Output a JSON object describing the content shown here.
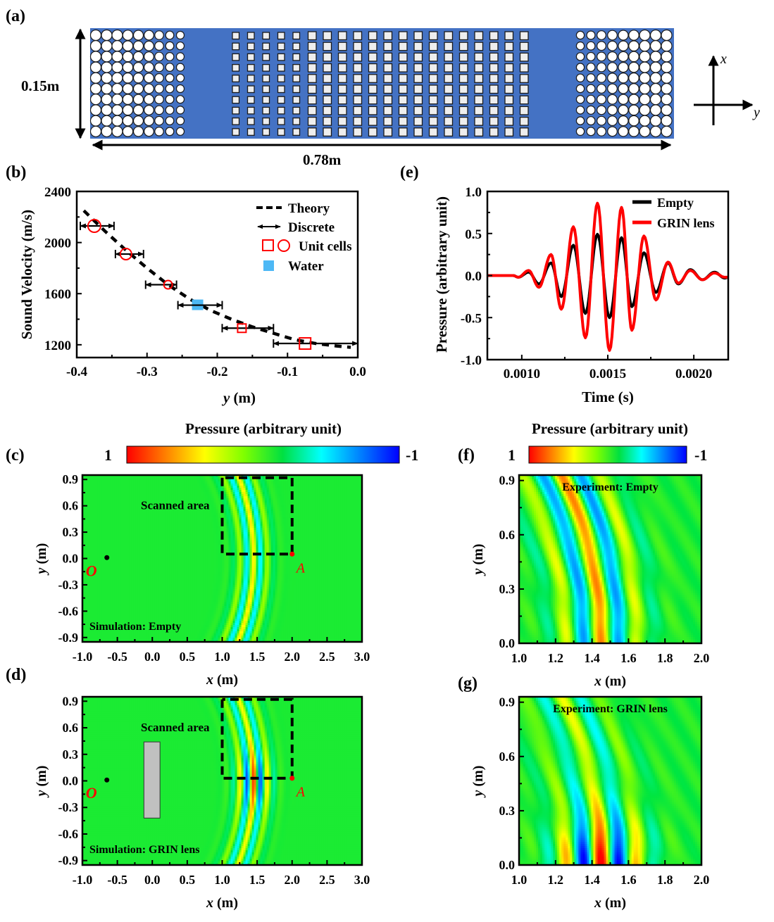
{
  "panel_labels": {
    "a": "(a)",
    "b": "(b)",
    "c": "(c)",
    "d": "(d)",
    "e": "(e)",
    "f": "(f)",
    "g": "(g)"
  },
  "schematic": {
    "height_label": "0.15m",
    "length_label": "0.78m",
    "axis_x_label": "x",
    "axis_y_label": "y",
    "background_color": "#4472c4",
    "rows": 10,
    "left_circle_columns": 9,
    "square_columns": 20,
    "right_circle_columns": 9
  },
  "colorbar": {
    "title": "Pressure (arbitrary unit)",
    "max_label": "1",
    "min_label": "-1",
    "colors": [
      "#ff0000",
      "#ff8000",
      "#ffff00",
      "#80ff00",
      "#00e040",
      "#00ffff",
      "#0080ff",
      "#0000ff"
    ]
  },
  "chart_data": [
    {
      "id": "b",
      "type": "scatter",
      "title": "",
      "xlabel_italic": "y",
      "xlabel_rest": " (m)",
      "ylabel": "Sound Velocity (m/s)",
      "xlim": [
        -0.4,
        0.0
      ],
      "ylim": [
        1100,
        2400
      ],
      "xticks": [
        -0.4,
        -0.3,
        -0.2,
        -0.1,
        0.0
      ],
      "xtick_labels": [
        "-0.4",
        "-0.3",
        "-0.2",
        "-0.1",
        "0.0"
      ],
      "yticks": [
        1200,
        1600,
        2000,
        2400
      ],
      "ytick_labels": [
        "1200",
        "1600",
        "2000",
        "2400"
      ],
      "legend": [
        "Theory",
        "Discrete",
        "Unit cells",
        "Water"
      ],
      "legend_position": "top-right",
      "theory": {
        "x": [
          -0.39,
          -0.36,
          -0.33,
          -0.3,
          -0.27,
          -0.24,
          -0.21,
          -0.18,
          -0.15,
          -0.12,
          -0.09,
          -0.06,
          -0.03,
          -0.01
        ],
        "y": [
          2250,
          2090,
          1940,
          1800,
          1670,
          1560,
          1470,
          1400,
          1340,
          1290,
          1240,
          1210,
          1190,
          1180
        ]
      },
      "discrete": [
        {
          "x0": -0.395,
          "x1": -0.347,
          "y": 2130,
          "marker": "circle",
          "size": "large"
        },
        {
          "x0": -0.345,
          "x1": -0.305,
          "y": 1910,
          "marker": "circle",
          "size": "medium"
        },
        {
          "x0": -0.302,
          "x1": -0.258,
          "y": 1670,
          "marker": "circle",
          "size": "small"
        },
        {
          "x0": -0.256,
          "x1": -0.193,
          "y": 1510,
          "marker": "water"
        },
        {
          "x0": -0.193,
          "x1": -0.12,
          "y": 1330,
          "marker": "square",
          "size": "small"
        },
        {
          "x0": -0.12,
          "x1": 0.0,
          "y": 1210,
          "marker": "square",
          "size": "large"
        }
      ],
      "marker_x": [
        -0.375,
        -0.33,
        -0.27,
        -0.228,
        -0.165,
        -0.075
      ]
    },
    {
      "id": "e",
      "type": "line",
      "xlabel": "Time (s)",
      "ylabel": "Pressure (arbitrary unit)",
      "xlim": [
        0.0008,
        0.0022
      ],
      "ylim": [
        -1.0,
        1.0
      ],
      "xticks": [
        0.001,
        0.0015,
        0.002
      ],
      "xtick_labels": [
        "0.0010",
        "0.0015",
        "0.0020"
      ],
      "yticks": [
        -1.0,
        -0.5,
        0.0,
        0.5,
        1.0
      ],
      "ytick_labels": [
        "-1.0",
        "-0.5",
        "0.0",
        "0.5",
        "1.0"
      ],
      "legend_position": "top-right",
      "series": [
        {
          "name": "Empty",
          "color": "#000000",
          "peaks": [
            [
              0.0008,
              0
            ],
            [
              0.00095,
              0.0
            ],
            [
              0.00098,
              -0.02
            ],
            [
              0.00104,
              0.04
            ],
            [
              0.0011,
              -0.1
            ],
            [
              0.00117,
              0.15
            ],
            [
              0.00123,
              -0.25
            ],
            [
              0.0013,
              0.36
            ],
            [
              0.00137,
              -0.45
            ],
            [
              0.00144,
              0.49
            ],
            [
              0.00151,
              -0.5
            ],
            [
              0.00158,
              0.45
            ],
            [
              0.00164,
              -0.37
            ],
            [
              0.00171,
              0.27
            ],
            [
              0.00178,
              -0.2
            ],
            [
              0.00185,
              0.15
            ],
            [
              0.00191,
              -0.1
            ],
            [
              0.00198,
              0.07
            ],
            [
              0.00205,
              -0.05
            ],
            [
              0.00212,
              0.04
            ],
            [
              0.00218,
              -0.03
            ],
            [
              0.0022,
              -0.02
            ]
          ]
        },
        {
          "name": "GRIN lens",
          "color": "#ff0000",
          "peaks": [
            [
              0.0008,
              0
            ],
            [
              0.00095,
              0.0
            ],
            [
              0.00098,
              -0.02
            ],
            [
              0.00104,
              0.06
            ],
            [
              0.0011,
              -0.14
            ],
            [
              0.00117,
              0.25
            ],
            [
              0.00123,
              -0.4
            ],
            [
              0.0013,
              0.58
            ],
            [
              0.00137,
              -0.74
            ],
            [
              0.00144,
              0.86
            ],
            [
              0.00151,
              -0.89
            ],
            [
              0.00158,
              0.81
            ],
            [
              0.00164,
              -0.65
            ],
            [
              0.00171,
              0.47
            ],
            [
              0.00178,
              -0.29
            ],
            [
              0.00185,
              0.16
            ],
            [
              0.00191,
              -0.09
            ],
            [
              0.00198,
              0.06
            ],
            [
              0.00205,
              -0.05
            ],
            [
              0.00212,
              0.03
            ],
            [
              0.00218,
              -0.02
            ],
            [
              0.0022,
              -0.02
            ]
          ]
        }
      ]
    },
    {
      "id": "c",
      "type": "heatmap",
      "xlabel_italic": "x",
      "xlabel_rest": " (m)",
      "ylabel_italic": "y",
      "ylabel_rest": " (m)",
      "xlim": [
        -1.0,
        3.0
      ],
      "ylim": [
        -0.95,
        0.95
      ],
      "xticks": [
        -1.0,
        -0.5,
        0.0,
        0.5,
        1.0,
        1.5,
        2.0,
        2.5,
        3.0
      ],
      "xtick_labels": [
        "-1.0",
        "-0.5",
        "0.0",
        "0.5",
        "1.0",
        "1.5",
        "2.0",
        "2.5",
        "3.0"
      ],
      "yticks": [
        -0.9,
        -0.6,
        -0.3,
        0.0,
        0.3,
        0.6,
        0.9
      ],
      "ytick_labels": [
        "-0.9",
        "-0.6",
        "-0.3",
        "0.0",
        "0.3",
        "0.6",
        "0.9"
      ],
      "annotation": "Simulation: Empty",
      "scanned_label": "Scanned area",
      "scan_box": {
        "x0": 1.0,
        "x1": 2.0,
        "y0": 0.05,
        "y1": 0.92
      },
      "source_label": "O",
      "source_point": [
        -0.65,
        0.01
      ],
      "point_a_label": "A",
      "point_a": [
        2.0,
        0.05
      ],
      "wave_amplitude": 0.45,
      "has_lens": false
    },
    {
      "id": "d",
      "type": "heatmap",
      "xlabel_italic": "x",
      "xlabel_rest": " (m)",
      "ylabel_italic": "y",
      "ylabel_rest": " (m)",
      "xlim": [
        -1.0,
        3.0
      ],
      "ylim": [
        -0.95,
        0.95
      ],
      "xticks": [
        -1.0,
        -0.5,
        0.0,
        0.5,
        1.0,
        1.5,
        2.0,
        2.5,
        3.0
      ],
      "xtick_labels": [
        "-1.0",
        "-0.5",
        "0.0",
        "0.5",
        "1.0",
        "1.5",
        "2.0",
        "2.5",
        "3.0"
      ],
      "yticks": [
        -0.9,
        -0.6,
        -0.3,
        0.0,
        0.3,
        0.6,
        0.9
      ],
      "ytick_labels": [
        "-0.9",
        "-0.6",
        "-0.3",
        "0.0",
        "0.3",
        "0.6",
        "0.9"
      ],
      "annotation": "Simulation: GRIN lens",
      "scanned_label": "Scanned area",
      "scan_box": {
        "x0": 1.0,
        "x1": 2.0,
        "y0": 0.03,
        "y1": 0.92
      },
      "source_label": "O",
      "source_point": [
        -0.65,
        0.01
      ],
      "point_a_label": "A",
      "point_a": [
        2.0,
        0.03
      ],
      "lens_box": {
        "x0": -0.12,
        "x1": 0.11,
        "y0": -0.42,
        "y1": 0.44
      },
      "lens_color": "#c0c0c0",
      "wave_amplitude": 0.9,
      "has_lens": true
    },
    {
      "id": "f",
      "type": "heatmap",
      "xlabel_italic": "x",
      "xlabel_rest": " (m)",
      "ylabel_italic": "y",
      "ylabel_rest": " (m)",
      "xlim": [
        1.0,
        2.0
      ],
      "ylim": [
        0.0,
        0.93
      ],
      "xticks": [
        1.0,
        1.2,
        1.4,
        1.6,
        1.8,
        2.0
      ],
      "xtick_labels": [
        "1.0",
        "1.2",
        "1.4",
        "1.6",
        "1.8",
        "2.0"
      ],
      "yticks": [
        0.0,
        0.3,
        0.6,
        0.9
      ],
      "ytick_labels": [
        "0.0",
        "0.3",
        "0.6",
        "0.9"
      ],
      "annotation": "Experiment: Empty",
      "wave_amplitude": 0.65,
      "focused": false
    },
    {
      "id": "g",
      "type": "heatmap",
      "xlabel_italic": "x",
      "xlabel_rest": " (m)",
      "ylabel_italic": "y",
      "ylabel_rest": " (m)",
      "xlim": [
        1.0,
        2.0
      ],
      "ylim": [
        0.0,
        0.93
      ],
      "xticks": [
        1.0,
        1.2,
        1.4,
        1.6,
        1.8,
        2.0
      ],
      "xtick_labels": [
        "1.0",
        "1.2",
        "1.4",
        "1.6",
        "1.8",
        "2.0"
      ],
      "yticks": [
        0.0,
        0.3,
        0.6,
        0.9
      ],
      "ytick_labels": [
        "0.0",
        "0.3",
        "0.6",
        "0.9"
      ],
      "annotation": "Experiment: GRIN lens",
      "wave_amplitude": 1.0,
      "focused": true
    }
  ]
}
